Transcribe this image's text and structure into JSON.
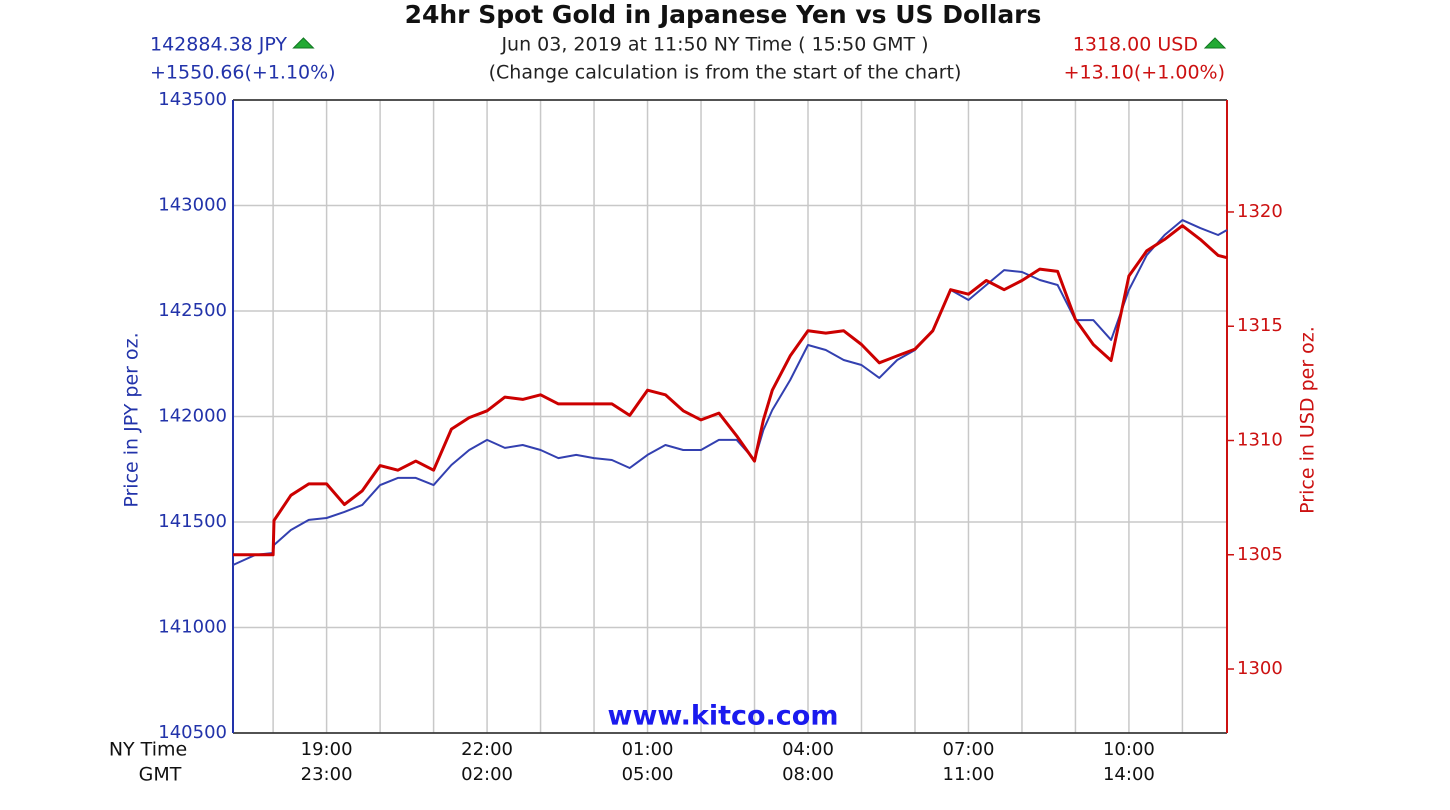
{
  "chart_data": {
    "type": "line",
    "title": "24hr Spot Gold in Japanese Yen vs US Dollars",
    "subtitle": "Jun 03, 2019 at 11:50 NY Time ( 15:50 GMT )",
    "note": "(Change calculation is from the start of the chart)",
    "left_price": "142884.38 JPY",
    "left_change": "+1550.66(+1.10%)",
    "right_price": "1318.00 USD",
    "right_change": "+13.10(+1.00%)",
    "watermark": "www.kitco.com",
    "ylabel": "Price in JPY per oz.",
    "y2label": "Price in USD per oz.",
    "x_axis_labels": [
      "NY Time",
      "GMT"
    ],
    "x": [
      "17:15",
      "17:40",
      "18:00",
      "18:01",
      "18:20",
      "18:40",
      "19:00",
      "19:20",
      "19:40",
      "20:00",
      "20:20",
      "20:40",
      "21:00",
      "21:20",
      "21:40",
      "22:00",
      "22:20",
      "22:40",
      "23:00",
      "23:20",
      "23:40",
      "00:00",
      "00:20",
      "00:40",
      "01:00",
      "01:20",
      "01:40",
      "02:00",
      "02:20",
      "02:40",
      "03:00",
      "03:10",
      "03:20",
      "03:40",
      "04:00",
      "04:20",
      "04:40",
      "05:00",
      "05:20",
      "05:40",
      "06:00",
      "06:20",
      "06:40",
      "07:00",
      "07:20",
      "07:40",
      "08:00",
      "08:20",
      "08:40",
      "09:00",
      "09:20",
      "09:40",
      "10:00",
      "10:20",
      "10:40",
      "11:00",
      "11:20",
      "11:40",
      "11:50"
    ],
    "series": [
      {
        "color": "#3340b0",
        "axis": "y",
        "values": [
          141296,
          141344,
          141353,
          141391,
          141462,
          141510,
          141519,
          141548,
          141581,
          141675,
          141709,
          141709,
          141675,
          141770,
          141841,
          141889,
          141851,
          141865,
          141841,
          141803,
          141818,
          141803,
          141794,
          141756,
          141818,
          141865,
          141841,
          141841,
          141889,
          141889,
          141794,
          141936,
          142031,
          142173,
          142339,
          142315,
          142268,
          142244,
          142183,
          142268,
          142315,
          142410,
          142600,
          142552,
          142623,
          142694,
          142685,
          142647,
          142623,
          142457,
          142457,
          142363,
          142600,
          142765,
          142860,
          142931,
          142893,
          142860,
          142884
        ]
      },
      {
        "color": "#cc0000",
        "axis": "y2",
        "values": [
          1305.0,
          1305.0,
          1305.0,
          1306.5,
          1307.6,
          1308.1,
          1308.1,
          1307.2,
          1307.8,
          1308.9,
          1308.7,
          1309.1,
          1308.7,
          1310.5,
          1311.0,
          1311.3,
          1311.9,
          1311.8,
          1312.0,
          1311.6,
          1311.6,
          1311.6,
          1311.6,
          1311.1,
          1312.2,
          1312.0,
          1311.3,
          1310.9,
          1311.2,
          1310.2,
          1309.1,
          1310.9,
          1312.2,
          1313.7,
          1314.8,
          1314.7,
          1314.8,
          1314.2,
          1313.4,
          1313.7,
          1314.0,
          1314.8,
          1316.6,
          1316.4,
          1317.0,
          1316.6,
          1317.0,
          1317.5,
          1317.4,
          1315.3,
          1314.2,
          1313.5,
          1317.2,
          1318.3,
          1318.8,
          1319.4,
          1318.8,
          1318.1,
          1318.0
        ]
      }
    ],
    "xlim": [
      "17:15",
      "11:50"
    ],
    "xticks": [
      "19:00",
      "22:00",
      "01:00",
      "04:00",
      "07:00",
      "10:00"
    ],
    "gmt_ticks": [
      "23:00",
      "02:00",
      "05:00",
      "08:00",
      "11:00",
      "14:00"
    ],
    "xgrid": [
      "18:00",
      "19:00",
      "20:00",
      "21:00",
      "22:00",
      "23:00",
      "00:00",
      "01:00",
      "02:00",
      "03:00",
      "04:00",
      "05:00",
      "06:00",
      "07:00",
      "08:00",
      "09:00",
      "10:00",
      "11:00"
    ],
    "ylim": [
      140500,
      143500
    ],
    "yticks": [
      140500,
      141000,
      141500,
      142000,
      142500,
      143000,
      143500
    ],
    "y2lim": [
      1297.2,
      1324.9
    ],
    "y2ticks": [
      1300,
      1305,
      1310,
      1315,
      1320
    ],
    "grid": true
  }
}
